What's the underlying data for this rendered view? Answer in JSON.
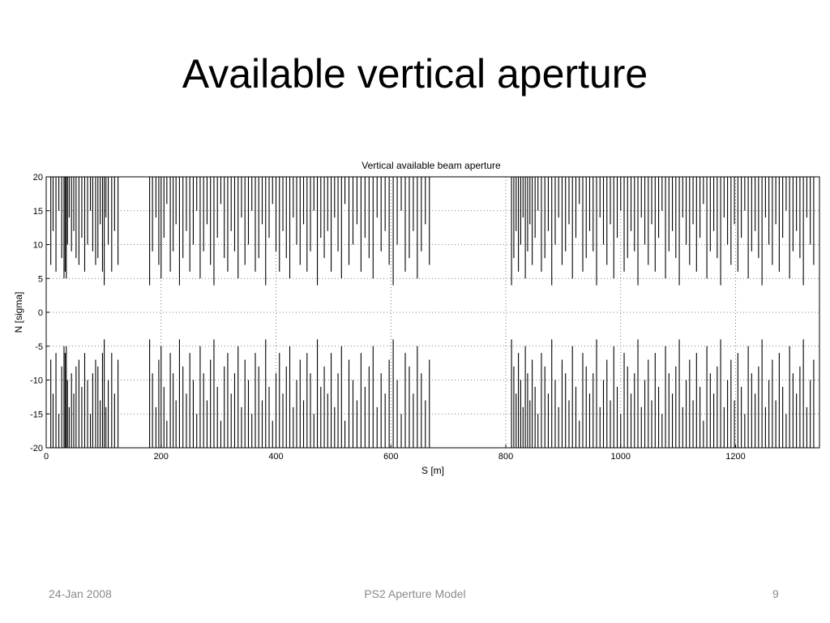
{
  "slide": {
    "title": "Available vertical aperture",
    "footer_date": "24-Jan 2008",
    "footer_center": "PS2 Aperture Model",
    "page_number": "9"
  },
  "chart_data": {
    "type": "line",
    "title": "Vertical available beam aperture",
    "xlabel": "S [m]",
    "ylabel": "N [sigma]",
    "xlim": [
      0,
      1346
    ],
    "ylim": [
      -20,
      20
    ],
    "xticks": [
      0,
      200,
      400,
      600,
      800,
      1000,
      1200
    ],
    "yticks": [
      20,
      15,
      10,
      5,
      0,
      -5,
      -10,
      -15,
      -20
    ],
    "grid": "dotted",
    "line_color": "#000000",
    "description_of_series": "Symmetric available aperture (+N and -N) versus longitudinal position S; dense spikes between about 3.5 and 20 sigma, clipped at ±20",
    "series": [
      {
        "x": [
          8,
          12,
          17,
          22,
          27,
          31,
          33,
          35,
          37,
          40,
          44,
          48,
          52,
          57,
          62,
          67,
          72,
          77,
          81,
          86,
          90,
          94,
          98,
          101,
          104,
          108,
          114,
          119,
          125,
          180,
          185,
          191,
          196,
          200,
          205,
          210,
          216,
          221,
          226,
          232,
          238,
          244,
          250,
          256,
          262,
          268,
          274,
          280,
          286,
          292,
          298,
          304,
          310,
          316,
          322,
          328,
          334,
          340,
          346,
          352,
          358,
          364,
          370,
          376,
          382,
          388,
          394,
          400,
          406,
          412,
          418,
          424,
          430,
          436,
          442,
          448,
          454,
          460,
          466,
          472,
          478,
          484,
          490,
          496,
          502,
          508,
          514,
          520,
          527,
          534,
          541,
          548,
          555,
          562,
          569,
          576,
          583,
          590,
          597,
          604,
          611,
          618,
          625,
          632,
          639,
          646,
          653,
          660,
          667,
          810,
          814,
          818,
          822,
          826,
          830,
          834,
          838,
          842,
          846,
          851,
          856,
          862,
          868,
          874,
          880,
          886,
          892,
          898,
          904,
          910,
          916,
          922,
          928,
          934,
          940,
          946,
          952,
          958,
          964,
          970,
          976,
          982,
          988,
          994,
          1000,
          1006,
          1012,
          1018,
          1024,
          1030,
          1036,
          1042,
          1048,
          1054,
          1060,
          1066,
          1072,
          1078,
          1084,
          1090,
          1096,
          1102,
          1108,
          1114,
          1120,
          1126,
          1132,
          1138,
          1144,
          1150,
          1156,
          1162,
          1168,
          1174,
          1180,
          1186,
          1192,
          1198,
          1204,
          1210,
          1216,
          1222,
          1228,
          1234,
          1240,
          1246,
          1252,
          1258,
          1264,
          1270,
          1276,
          1282,
          1288,
          1294,
          1300,
          1306,
          1312,
          1318,
          1324,
          1330,
          1336
        ],
        "y": [
          7,
          12,
          6,
          15,
          8,
          5,
          6,
          5,
          10,
          14,
          9,
          12,
          8,
          7,
          11,
          6,
          10,
          15,
          9,
          7,
          8,
          13,
          6,
          4,
          14,
          10,
          6,
          12,
          7,
          4,
          9,
          14,
          7,
          5,
          11,
          16,
          6,
          9,
          13,
          4,
          8,
          12,
          6,
          10,
          15,
          5,
          9,
          13,
          7,
          4,
          11,
          16,
          8,
          6,
          12,
          9,
          5,
          14,
          7,
          10,
          15,
          6,
          8,
          13,
          4,
          11,
          16,
          9,
          6,
          12,
          8,
          5,
          14,
          10,
          7,
          13,
          6,
          9,
          15,
          4,
          11,
          8,
          12,
          6,
          14,
          9,
          5,
          16,
          7,
          10,
          13,
          6,
          11,
          8,
          5,
          14,
          9,
          12,
          7,
          4,
          10,
          15,
          6,
          8,
          12,
          5,
          9,
          13,
          7,
          4,
          8,
          12,
          6,
          10,
          14,
          5,
          9,
          13,
          7,
          11,
          15,
          6,
          8,
          12,
          4,
          10,
          14,
          7,
          9,
          13,
          5,
          11,
          16,
          6,
          8,
          12,
          9,
          4,
          14,
          10,
          7,
          13,
          5,
          11,
          15,
          6,
          8,
          12,
          9,
          4,
          14,
          10,
          7,
          13,
          6,
          11,
          15,
          5,
          9,
          12,
          8,
          4,
          14,
          10,
          7,
          13,
          6,
          11,
          16,
          5,
          9,
          12,
          8,
          4,
          14,
          10,
          7,
          13,
          6,
          11,
          15,
          5,
          9,
          12,
          8,
          4,
          14,
          10,
          7,
          13,
          6,
          11,
          15,
          5,
          9,
          12,
          8,
          4,
          14,
          10,
          7
        ]
      }
    ]
  }
}
